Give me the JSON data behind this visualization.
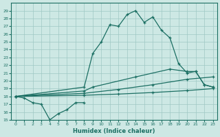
{
  "xlabel": "Humidex (Indice chaleur)",
  "xlim": [
    -0.5,
    23.5
  ],
  "ylim": [
    15,
    30
  ],
  "xticks": [
    0,
    1,
    2,
    3,
    4,
    5,
    6,
    7,
    8,
    9,
    10,
    11,
    12,
    13,
    14,
    15,
    16,
    17,
    18,
    19,
    20,
    21,
    22,
    23
  ],
  "yticks": [
    15,
    16,
    17,
    18,
    19,
    20,
    21,
    22,
    23,
    24,
    25,
    26,
    27,
    28,
    29
  ],
  "bg_color": "#cde8e4",
  "grid_color": "#9ec8c4",
  "line_color": "#1a6e62",
  "lines": [
    {
      "x": [
        0,
        1,
        2,
        3,
        4,
        5,
        6,
        7,
        8
      ],
      "y": [
        18.0,
        17.8,
        17.2,
        17.0,
        15.0,
        15.8,
        16.3,
        17.2,
        17.2
      ]
    },
    {
      "x": [
        0,
        8,
        12,
        16,
        20,
        23
      ],
      "y": [
        18.0,
        18.15,
        18.3,
        18.5,
        18.75,
        19.0
      ]
    },
    {
      "x": [
        0,
        8,
        12,
        16,
        20,
        23
      ],
      "y": [
        18.0,
        18.4,
        18.9,
        19.5,
        20.2,
        20.5
      ]
    },
    {
      "x": [
        0,
        8,
        9,
        14,
        18,
        20,
        21,
        22,
        23
      ],
      "y": [
        18.0,
        18.7,
        19.2,
        20.5,
        21.5,
        21.2,
        21.2,
        19.5,
        19.2
      ]
    },
    {
      "x": [
        0,
        8,
        9,
        10,
        11,
        12,
        13,
        14,
        15,
        16,
        17,
        18,
        19,
        20,
        21,
        22,
        23
      ],
      "y": [
        18.0,
        19.2,
        23.5,
        25.0,
        27.2,
        27.0,
        28.5,
        29.0,
        27.5,
        28.2,
        26.5,
        25.5,
        22.2,
        21.0,
        21.2,
        19.5,
        19.2
      ]
    }
  ]
}
